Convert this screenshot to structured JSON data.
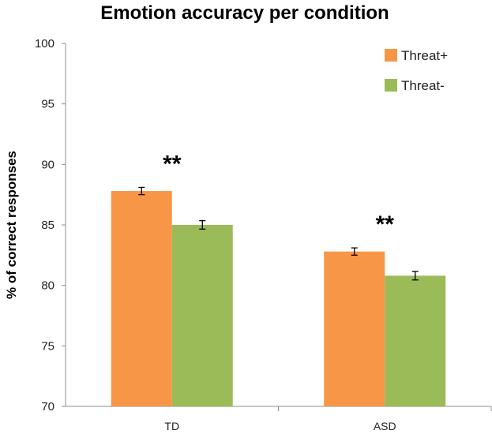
{
  "chart_data": {
    "type": "bar",
    "title": "Emotion accuracy per condition",
    "xlabel": "",
    "ylabel": "% of correct responses",
    "ylim": [
      70,
      100
    ],
    "yticks": [
      "70",
      "75",
      "80",
      "85",
      "90",
      "95",
      "100"
    ],
    "categories": [
      "TD",
      "ASD"
    ],
    "series": [
      {
        "name": "Threat+",
        "color": "#F79646",
        "values": [
          87.8,
          82.8
        ],
        "errors": [
          0.3,
          0.3
        ]
      },
      {
        "name": "Threat-",
        "color": "#9BBB59",
        "values": [
          85.0,
          80.8
        ],
        "errors": [
          0.35,
          0.35
        ]
      }
    ],
    "annotations": [
      "**",
      "**"
    ],
    "legend_position": "top-right",
    "grid": false
  }
}
